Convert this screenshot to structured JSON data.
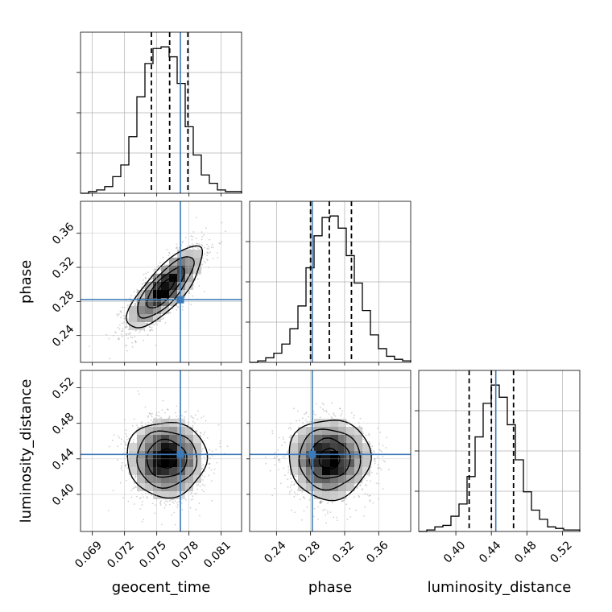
{
  "chart_data": {
    "type": "corner",
    "parameters": [
      {
        "name": "geocent_time",
        "label": "geocent_time",
        "range": [
          0.0679,
          0.0829
        ],
        "ticks": [
          0.069,
          0.072,
          0.075,
          0.078,
          0.081
        ],
        "tick_labels": [
          "0.069",
          "0.072",
          "0.075",
          "0.078",
          "0.081"
        ],
        "truth": 0.0772,
        "quantiles": [
          0.0745,
          0.0762,
          0.0779
        ],
        "hist": {
          "bin_edges": [
            0.0679,
            0.06865,
            0.0694,
            0.07015,
            0.0709,
            0.07165,
            0.0724,
            0.07315,
            0.0739,
            0.07465,
            0.0754,
            0.07615,
            0.0769,
            0.07765,
            0.0784,
            0.07915,
            0.0799,
            0.08065,
            0.0814,
            0.08215,
            0.0829
          ],
          "counts": [
            0,
            1,
            2,
            4,
            10,
            17,
            34,
            58,
            78,
            87,
            88,
            82,
            66,
            40,
            23,
            11,
            6,
            2,
            1,
            1
          ]
        }
      },
      {
        "name": "phase",
        "label": "phase",
        "range": [
          0.2085,
          0.3975
        ],
        "ticks": [
          0.24,
          0.28,
          0.32,
          0.36
        ],
        "tick_labels": [
          "0.24",
          "0.28",
          "0.32",
          "0.36"
        ],
        "truth": 0.282,
        "quantiles": [
          0.28,
          0.302,
          0.328
        ],
        "hist": {
          "bin_edges": [
            0.2085,
            0.21795,
            0.2274,
            0.23685,
            0.2463,
            0.25575,
            0.2652,
            0.27465,
            0.2841,
            0.29355,
            0.303,
            0.31245,
            0.3219,
            0.33135,
            0.3408,
            0.35025,
            0.3597,
            0.36915,
            0.3786,
            0.38805,
            0.3975
          ],
          "counts": [
            0,
            1,
            3,
            6,
            12,
            22,
            37,
            62,
            83,
            95,
            96,
            88,
            70,
            52,
            34,
            18,
            9,
            4,
            2,
            1
          ]
        }
      },
      {
        "name": "luminosity_distance",
        "label": "luminosity_distance",
        "range": [
          0.3582,
          0.5396
        ],
        "ticks": [
          0.4,
          0.44,
          0.48,
          0.52
        ],
        "tick_labels": [
          "0.40",
          "0.44",
          "0.48",
          "0.52"
        ],
        "truth": 0.445,
        "quantiles": [
          0.415,
          0.44,
          0.465
        ],
        "hist": {
          "bin_edges": [
            0.3582,
            0.36727,
            0.37634,
            0.38541,
            0.39448,
            0.40355,
            0.41262,
            0.42169,
            0.43076,
            0.43983,
            0.4489,
            0.45797,
            0.46704,
            0.47611,
            0.48518,
            0.49425,
            0.50332,
            0.51239,
            0.52146,
            0.53053,
            0.5396
          ],
          "counts": [
            0,
            1,
            3,
            4,
            10,
            18,
            36,
            62,
            84,
            96,
            88,
            70,
            47,
            26,
            14,
            8,
            3,
            2,
            1,
            1
          ]
        }
      }
    ],
    "pairs": [
      {
        "x": "geocent_time",
        "y": "phase",
        "mean": [
          0.0758,
          0.296
        ],
        "sd": [
          0.00175,
          0.024
        ],
        "corr": 0.78
      },
      {
        "x": "geocent_time",
        "y": "luminosity_distance",
        "mean": [
          0.0759,
          0.44
        ],
        "sd": [
          0.00175,
          0.0225
        ],
        "corr": 0.0
      },
      {
        "x": "phase",
        "y": "luminosity_distance",
        "mean": [
          0.302,
          0.44
        ],
        "sd": [
          0.024,
          0.0225
        ],
        "corr": 0.0
      }
    ],
    "contour_levels_sigma": [
      0.5,
      1.0,
      1.5,
      2.0
    ],
    "colors": {
      "truth": "#3d7ab8",
      "line": "#000000",
      "grid": "#b0b0b0",
      "scatter": "#555555"
    },
    "grid": true
  }
}
